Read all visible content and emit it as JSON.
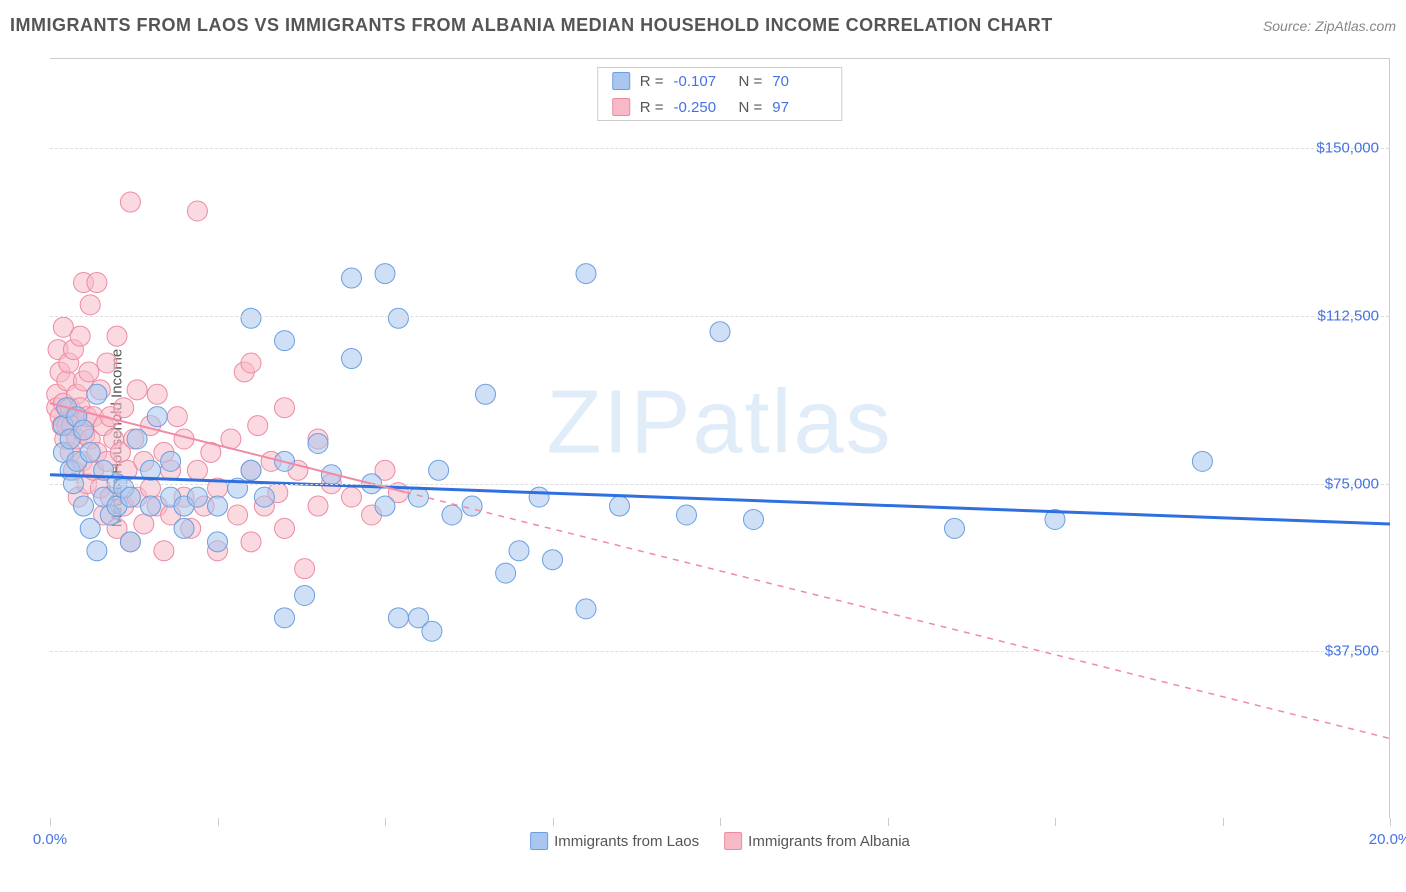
{
  "title": "IMMIGRANTS FROM LAOS VS IMMIGRANTS FROM ALBANIA MEDIAN HOUSEHOLD INCOME CORRELATION CHART",
  "source": "Source: ZipAtlas.com",
  "watermark": "ZIPatlas",
  "ylabel": "Median Household Income",
  "chart": {
    "type": "scatter",
    "xlim": [
      0,
      20
    ],
    "ylim": [
      0,
      170000
    ],
    "x_tick_positions": [
      0,
      2.5,
      5,
      7.5,
      10,
      12.5,
      15,
      17.5,
      20
    ],
    "x_tick_labels_shown": {
      "0": "0.0%",
      "20": "20.0%"
    },
    "y_gridlines": [
      37500,
      75000,
      112500,
      150000
    ],
    "y_tick_labels": [
      "$37,500",
      "$75,000",
      "$112,500",
      "$150,000"
    ],
    "background_color": "#ffffff",
    "grid_color": "#dddddd",
    "axis_color": "#cccccc",
    "tick_label_color": "#4472e4",
    "marker_radius": 10,
    "marker_stroke_width": 1,
    "series": [
      {
        "key": "laos",
        "label": "Immigrants from Laos",
        "fill": "#a8c6ee",
        "stroke": "#6a9fe0",
        "fill_opacity": 0.55,
        "R": "-0.107",
        "N": "70",
        "trend": {
          "x1": 0,
          "y1": 77000,
          "x2": 20,
          "y2": 66000,
          "solid_to_x": 20,
          "color": "#2f6fe0",
          "width": 3
        },
        "points": [
          [
            0.2,
            88000
          ],
          [
            0.2,
            82000
          ],
          [
            0.25,
            92000
          ],
          [
            0.3,
            78000
          ],
          [
            0.3,
            85000
          ],
          [
            0.35,
            75000
          ],
          [
            0.4,
            80000
          ],
          [
            0.4,
            90000
          ],
          [
            0.5,
            70000
          ],
          [
            0.5,
            87000
          ],
          [
            0.6,
            65000
          ],
          [
            0.6,
            82000
          ],
          [
            0.7,
            60000
          ],
          [
            0.7,
            95000
          ],
          [
            0.8,
            78000
          ],
          [
            0.8,
            72000
          ],
          [
            0.9,
            68000
          ],
          [
            1.0,
            70000
          ],
          [
            1.0,
            75000
          ],
          [
            1.1,
            74000
          ],
          [
            1.2,
            62000
          ],
          [
            1.2,
            72000
          ],
          [
            1.3,
            85000
          ],
          [
            1.5,
            70000
          ],
          [
            1.5,
            78000
          ],
          [
            1.6,
            90000
          ],
          [
            1.8,
            72000
          ],
          [
            1.8,
            80000
          ],
          [
            2.0,
            70000
          ],
          [
            2.0,
            65000
          ],
          [
            2.2,
            72000
          ],
          [
            2.5,
            70000
          ],
          [
            2.5,
            62000
          ],
          [
            2.8,
            74000
          ],
          [
            3.0,
            78000
          ],
          [
            3.0,
            112000
          ],
          [
            3.2,
            72000
          ],
          [
            3.5,
            80000
          ],
          [
            3.5,
            107000
          ],
          [
            3.5,
            45000
          ],
          [
            3.8,
            50000
          ],
          [
            4.0,
            84000
          ],
          [
            4.2,
            77000
          ],
          [
            4.5,
            121000
          ],
          [
            4.5,
            103000
          ],
          [
            4.8,
            75000
          ],
          [
            5.0,
            122000
          ],
          [
            5.0,
            70000
          ],
          [
            5.2,
            112000
          ],
          [
            5.2,
            45000
          ],
          [
            5.5,
            45000
          ],
          [
            5.5,
            72000
          ],
          [
            5.7,
            42000
          ],
          [
            5.8,
            78000
          ],
          [
            6.0,
            68000
          ],
          [
            6.3,
            70000
          ],
          [
            6.5,
            95000
          ],
          [
            6.8,
            55000
          ],
          [
            7.0,
            60000
          ],
          [
            7.3,
            72000
          ],
          [
            7.5,
            58000
          ],
          [
            8.0,
            122000
          ],
          [
            8.0,
            47000
          ],
          [
            8.5,
            70000
          ],
          [
            9.5,
            68000
          ],
          [
            10.0,
            109000
          ],
          [
            10.5,
            67000
          ],
          [
            13.5,
            65000
          ],
          [
            15.0,
            67000
          ],
          [
            17.2,
            80000
          ]
        ]
      },
      {
        "key": "albania",
        "label": "Immigrants from Albania",
        "fill": "#f7b9c6",
        "stroke": "#ec8ba2",
        "fill_opacity": 0.55,
        "R": "-0.250",
        "N": "97",
        "trend": {
          "x1": 0,
          "y1": 93000,
          "x2": 20,
          "y2": 18000,
          "solid_to_x": 5.3,
          "color": "#f28aa5",
          "width": 2
        },
        "points": [
          [
            0.1,
            95000
          ],
          [
            0.1,
            92000
          ],
          [
            0.12,
            105000
          ],
          [
            0.15,
            90000
          ],
          [
            0.15,
            100000
          ],
          [
            0.18,
            88000
          ],
          [
            0.2,
            110000
          ],
          [
            0.2,
            93000
          ],
          [
            0.22,
            85000
          ],
          [
            0.25,
            98000
          ],
          [
            0.25,
            88000
          ],
          [
            0.28,
            102000
          ],
          [
            0.3,
            92000
          ],
          [
            0.3,
            82000
          ],
          [
            0.32,
            88000
          ],
          [
            0.35,
            78000
          ],
          [
            0.35,
            105000
          ],
          [
            0.38,
            90000
          ],
          [
            0.4,
            85000
          ],
          [
            0.4,
            95000
          ],
          [
            0.42,
            72000
          ],
          [
            0.45,
            108000
          ],
          [
            0.45,
            92000
          ],
          [
            0.48,
            80000
          ],
          [
            0.5,
            98000
          ],
          [
            0.5,
            120000
          ],
          [
            0.52,
            86000
          ],
          [
            0.55,
            75000
          ],
          [
            0.55,
            90000
          ],
          [
            0.58,
            100000
          ],
          [
            0.6,
            115000
          ],
          [
            0.6,
            85000
          ],
          [
            0.65,
            90000
          ],
          [
            0.65,
            78000
          ],
          [
            0.7,
            82000
          ],
          [
            0.7,
            120000
          ],
          [
            0.75,
            74000
          ],
          [
            0.75,
            96000
          ],
          [
            0.8,
            88000
          ],
          [
            0.8,
            68000
          ],
          [
            0.85,
            102000
          ],
          [
            0.85,
            80000
          ],
          [
            0.9,
            72000
          ],
          [
            0.9,
            90000
          ],
          [
            0.95,
            85000
          ],
          [
            1.0,
            65000
          ],
          [
            1.0,
            108000
          ],
          [
            1.05,
            82000
          ],
          [
            1.1,
            70000
          ],
          [
            1.1,
            92000
          ],
          [
            1.15,
            78000
          ],
          [
            1.2,
            62000
          ],
          [
            1.2,
            138000
          ],
          [
            1.25,
            85000
          ],
          [
            1.3,
            72000
          ],
          [
            1.3,
            96000
          ],
          [
            1.4,
            80000
          ],
          [
            1.4,
            66000
          ],
          [
            1.5,
            88000
          ],
          [
            1.5,
            74000
          ],
          [
            1.6,
            70000
          ],
          [
            1.6,
            95000
          ],
          [
            1.7,
            82000
          ],
          [
            1.7,
            60000
          ],
          [
            1.8,
            78000
          ],
          [
            1.8,
            68000
          ],
          [
            1.9,
            90000
          ],
          [
            2.0,
            72000
          ],
          [
            2.0,
            85000
          ],
          [
            2.1,
            65000
          ],
          [
            2.2,
            78000
          ],
          [
            2.2,
            136000
          ],
          [
            2.3,
            70000
          ],
          [
            2.4,
            82000
          ],
          [
            2.5,
            74000
          ],
          [
            2.5,
            60000
          ],
          [
            2.7,
            85000
          ],
          [
            2.8,
            68000
          ],
          [
            2.9,
            100000
          ],
          [
            3.0,
            78000
          ],
          [
            3.0,
            62000
          ],
          [
            3.0,
            102000
          ],
          [
            3.1,
            88000
          ],
          [
            3.2,
            70000
          ],
          [
            3.3,
            80000
          ],
          [
            3.4,
            73000
          ],
          [
            3.5,
            92000
          ],
          [
            3.5,
            65000
          ],
          [
            3.7,
            78000
          ],
          [
            3.8,
            56000
          ],
          [
            4.0,
            85000
          ],
          [
            4.0,
            70000
          ],
          [
            4.2,
            75000
          ],
          [
            4.5,
            72000
          ],
          [
            4.8,
            68000
          ],
          [
            5.0,
            78000
          ],
          [
            5.2,
            73000
          ]
        ]
      }
    ]
  }
}
